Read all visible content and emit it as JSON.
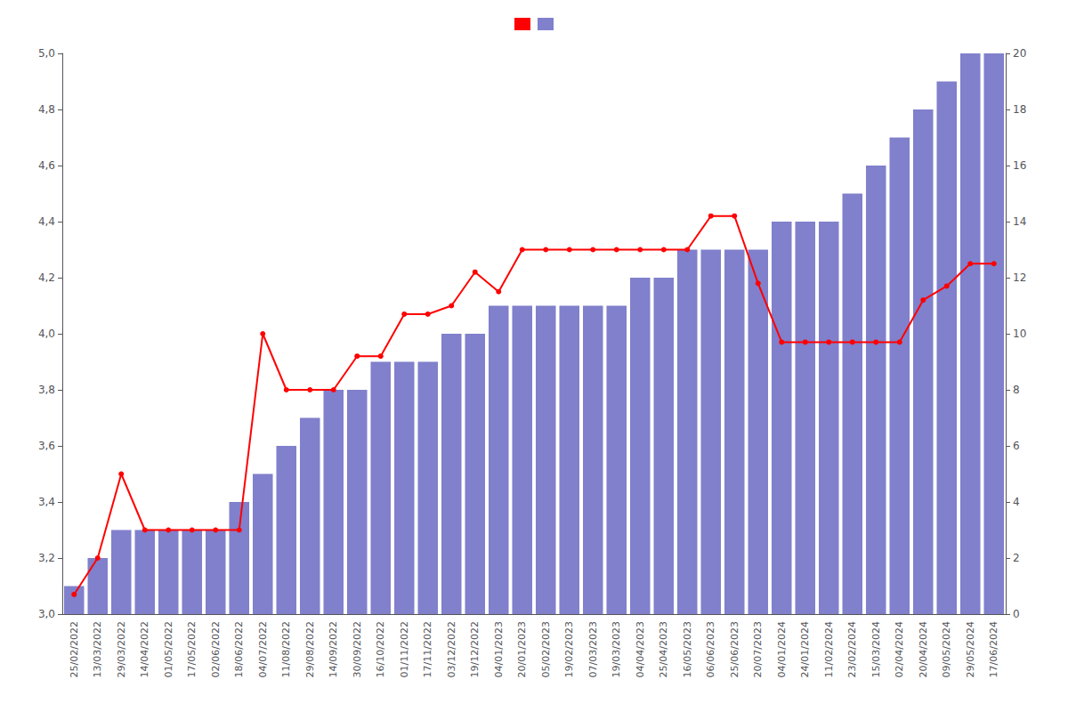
{
  "chart_data": {
    "type": "combo",
    "categories": [
      "25/02/2022",
      "13/03/2022",
      "29/03/2022",
      "14/04/2022",
      "01/05/2022",
      "17/05/2022",
      "02/06/2022",
      "18/06/2022",
      "04/07/2022",
      "11/08/2022",
      "29/08/2022",
      "14/09/2022",
      "30/09/2022",
      "16/10/2022",
      "01/11/2022",
      "17/11/2022",
      "03/12/2022",
      "19/12/2022",
      "04/01/2023",
      "20/01/2023",
      "05/02/2023",
      "19/02/2023",
      "07/03/2023",
      "19/03/2023",
      "04/04/2023",
      "25/04/2023",
      "16/05/2023",
      "06/06/2023",
      "25/06/2023",
      "20/07/2023",
      "04/01/2024",
      "24/01/2024",
      "11/02/2024",
      "23/02/2024",
      "15/03/2024",
      "02/04/2024",
      "20/04/2024",
      "09/05/2024",
      "29/05/2024",
      "17/06/2024"
    ],
    "series": [
      {
        "type": "bar",
        "axis": "y2",
        "color": "#8080cc",
        "values": [
          1,
          2,
          3,
          3,
          3,
          3,
          3,
          4,
          5,
          6,
          7,
          8,
          8,
          9,
          9,
          9,
          10,
          10,
          11,
          11,
          11,
          11,
          11,
          11,
          12,
          12,
          13,
          13,
          13,
          13,
          14,
          14,
          14,
          15,
          16,
          17,
          18,
          19,
          20,
          20
        ]
      },
      {
        "type": "line",
        "color": "#ff0000",
        "marker": "o",
        "values": [
          3.07,
          3.2,
          3.5,
          3.3,
          3.3,
          3.3,
          3.3,
          3.3,
          4.0,
          3.8,
          3.8,
          3.8,
          3.92,
          3.92,
          4.07,
          4.07,
          4.1,
          4.22,
          4.15,
          4.3,
          4.3,
          4.3,
          4.3,
          4.3,
          4.3,
          4.3,
          4.3,
          4.42,
          4.42,
          4.18,
          3.97,
          3.97,
          3.97,
          3.97,
          3.97,
          3.97,
          4.12,
          4.17,
          4.25,
          4.25
        ]
      }
    ],
    "ylim": [
      3.0,
      5.0
    ],
    "yticks": [
      {
        "value": 3.0,
        "label": "3,0"
      },
      {
        "value": 3.2,
        "label": "3,2"
      },
      {
        "value": 3.4,
        "label": "3,4"
      },
      {
        "value": 3.6,
        "label": "3,6"
      },
      {
        "value": 3.8,
        "label": "3,8"
      },
      {
        "value": 4.0,
        "label": "4,0"
      },
      {
        "value": 4.2,
        "label": "4,2"
      },
      {
        "value": 4.4,
        "label": "4,4"
      },
      {
        "value": 4.6,
        "label": "4,6"
      },
      {
        "value": 4.8,
        "label": "4,8"
      },
      {
        "value": 5.0,
        "label": "5,0"
      }
    ],
    "y2lim": [
      0,
      20
    ],
    "y2ticks": [
      0,
      2,
      4,
      6,
      8,
      10,
      12,
      14,
      16,
      18,
      20
    ],
    "grid": false,
    "legend": "top"
  }
}
